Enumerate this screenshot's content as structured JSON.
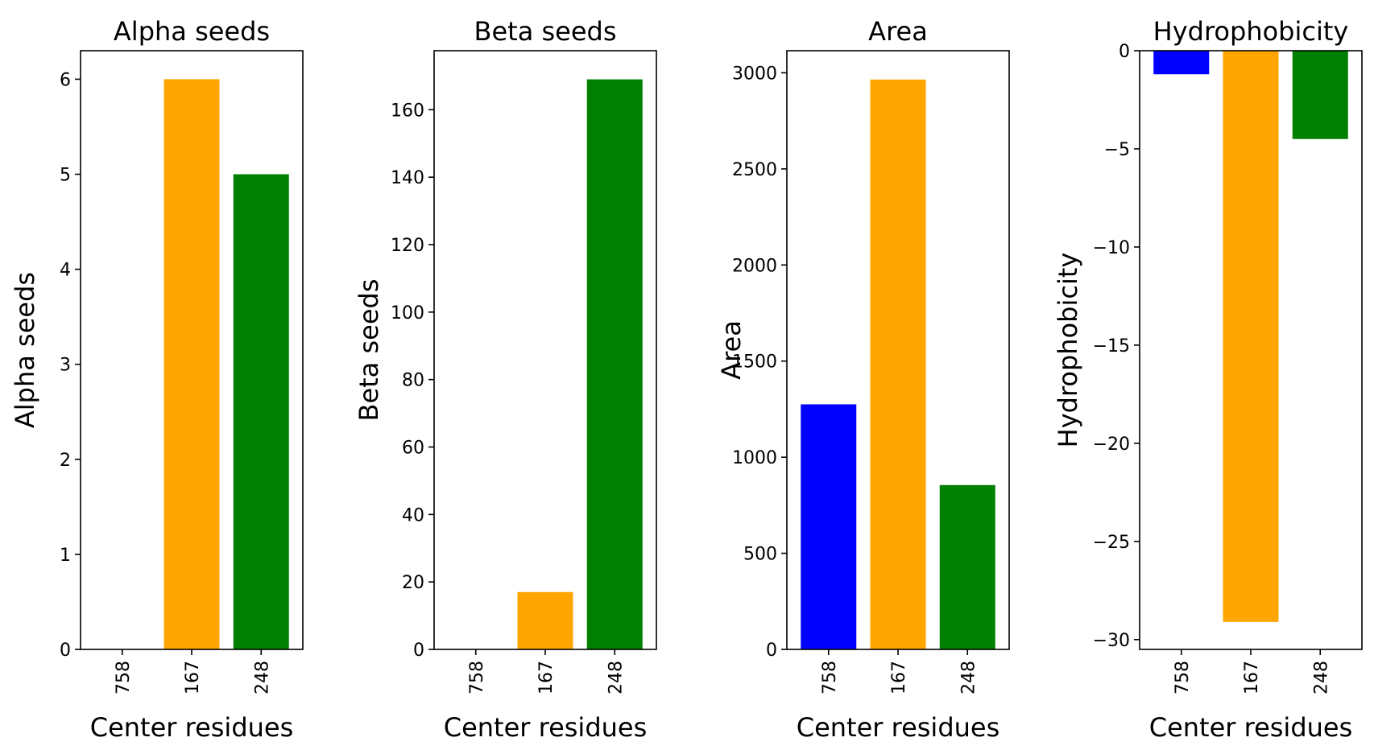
{
  "colors": [
    "#0000ff",
    "#ffa500",
    "#008000"
  ],
  "chart_data": [
    {
      "type": "bar",
      "title": "Alpha seeds",
      "xlabel": "Center residues",
      "ylabel": "Alpha seeds",
      "categories": [
        "758",
        "167",
        "248"
      ],
      "values": [
        0,
        6,
        5
      ],
      "ylim": [
        0,
        6.3
      ],
      "yticks": [
        0,
        1,
        2,
        3,
        4,
        5,
        6
      ],
      "ytick_labels": [
        "0",
        "1",
        "2",
        "3",
        "4",
        "5",
        "6"
      ],
      "grid": false
    },
    {
      "type": "bar",
      "title": "Beta seeds",
      "xlabel": "Center residues",
      "ylabel": "Beta seeds",
      "categories": [
        "758",
        "167",
        "248"
      ],
      "values": [
        0,
        17,
        169
      ],
      "ylim": [
        0,
        177.5
      ],
      "yticks": [
        0,
        20,
        40,
        60,
        80,
        100,
        120,
        140,
        160
      ],
      "ytick_labels": [
        "0",
        "20",
        "40",
        "60",
        "80",
        "100",
        "120",
        "140",
        "160"
      ],
      "grid": false
    },
    {
      "type": "bar",
      "title": "Area",
      "xlabel": "Center residues",
      "ylabel": "Area",
      "categories": [
        "758",
        "167",
        "248"
      ],
      "values": [
        1275,
        2965,
        855
      ],
      "ylim": [
        0,
        3115
      ],
      "yticks": [
        0,
        500,
        1000,
        1500,
        2000,
        2500,
        3000
      ],
      "ytick_labels": [
        "0",
        "500",
        "1000",
        "1500",
        "2000",
        "2500",
        "3000"
      ],
      "grid": false
    },
    {
      "type": "bar",
      "title": "Hydrophobicity",
      "xlabel": "Center residues",
      "ylabel": "Hydrophobicity",
      "categories": [
        "758",
        "167",
        "248"
      ],
      "values": [
        -1.2,
        -29.1,
        -4.5
      ],
      "ylim": [
        -30.5,
        0
      ],
      "yticks": [
        0,
        -5,
        -10,
        -15,
        -20,
        -25,
        -30
      ],
      "ytick_labels": [
        "0",
        "−5",
        "−10",
        "−15",
        "−20",
        "−25",
        "−30"
      ],
      "grid": false
    }
  ]
}
